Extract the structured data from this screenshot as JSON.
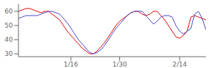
{
  "chart_data": {
    "type": "line",
    "x": [
      0,
      1,
      2,
      3,
      4,
      5,
      6,
      7,
      8,
      9,
      10,
      11,
      12,
      13,
      14,
      15,
      16,
      17,
      18,
      19,
      20,
      21,
      22,
      23,
      24,
      25,
      26,
      27,
      28,
      29,
      30,
      31,
      32,
      33,
      34,
      35,
      36,
      37,
      38,
      39,
      40,
      41,
      42,
      43,
      44,
      45,
      46,
      47,
      48,
      49,
      50
    ],
    "series": [
      {
        "color": "#dd0000",
        "values": [
          60,
          61,
          62,
          62,
          61,
          60,
          59,
          60,
          60,
          58,
          56,
          54,
          50,
          46,
          43,
          40,
          37,
          34,
          32,
          30,
          30,
          32,
          35,
          38,
          42,
          46,
          50,
          53,
          55,
          57,
          59,
          60,
          60,
          58,
          57,
          58,
          60,
          60,
          57,
          54,
          50,
          46,
          42,
          41,
          43,
          46,
          56,
          57,
          56,
          55,
          54
        ]
      },
      {
        "color": "#4444cc",
        "values": [
          55,
          56,
          57,
          57,
          57,
          57,
          58,
          59,
          60,
          60,
          59,
          58,
          55,
          52,
          48,
          44,
          40,
          37,
          34,
          31,
          30,
          31,
          33,
          36,
          40,
          44,
          48,
          51,
          54,
          57,
          59,
          60,
          60,
          60,
          57,
          54,
          51,
          53,
          56,
          57,
          57,
          56,
          50,
          46,
          44,
          46,
          48,
          58,
          60,
          55,
          47
        ]
      }
    ],
    "xlim": [
      0,
      50
    ],
    "xticks": [
      {
        "value": 14,
        "label": "1/16"
      },
      {
        "value": 27,
        "label": "1/30"
      },
      {
        "value": 43,
        "label": "2/14"
      }
    ],
    "ylim": [
      28,
      65
    ],
    "yticks": [
      30,
      40,
      50,
      60
    ],
    "grid": false
  }
}
